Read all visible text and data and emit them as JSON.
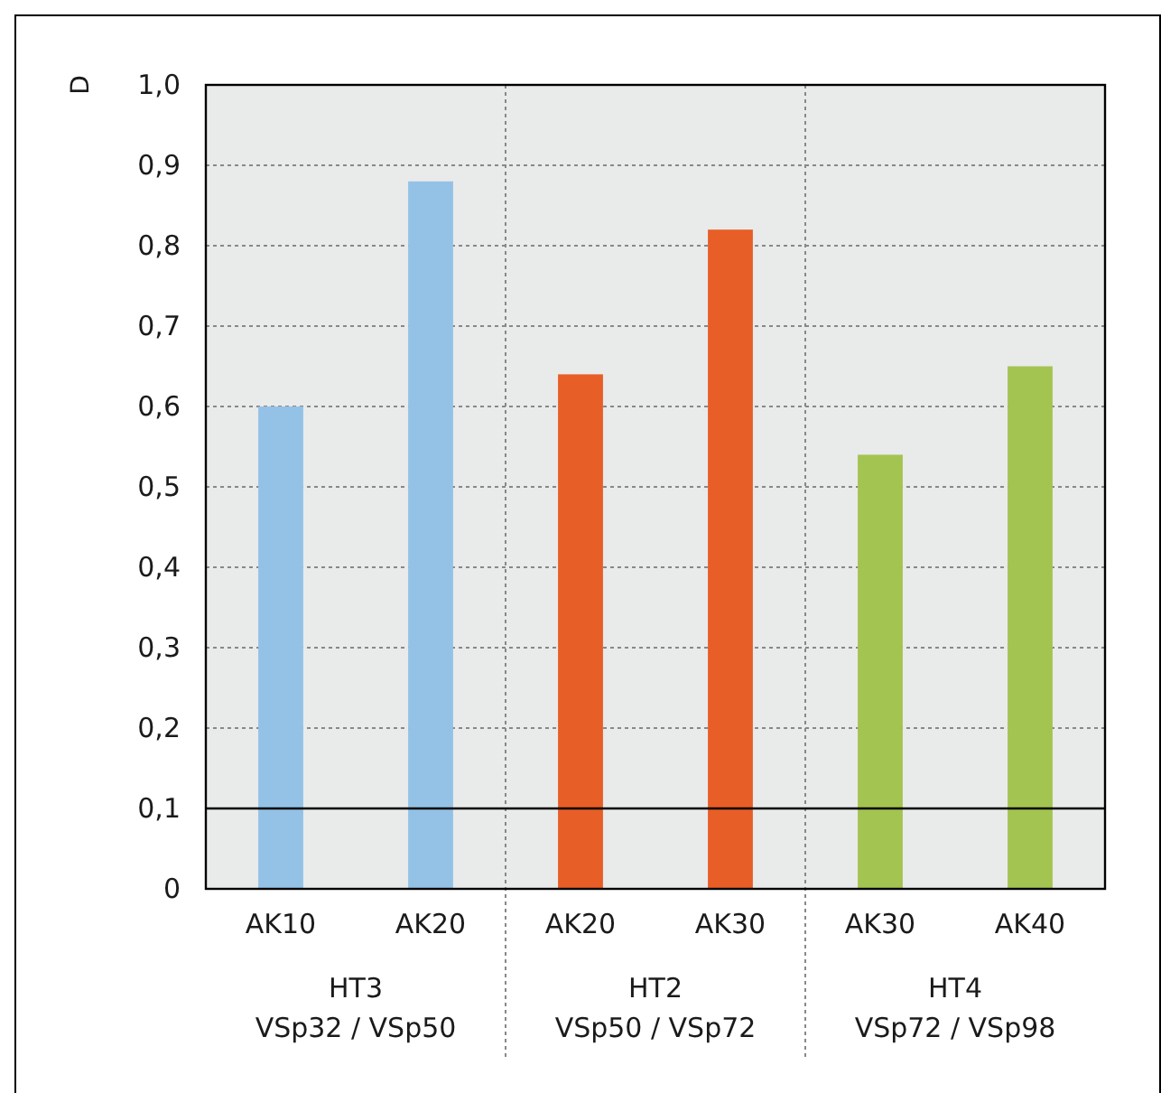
{
  "chart_data": {
    "type": "bar",
    "ylabel": "D",
    "categories": [
      "AK10",
      "AK20",
      "AK20",
      "AK30",
      "AK30",
      "AK40"
    ],
    "values": [
      0.6,
      0.88,
      0.64,
      0.82,
      0.54,
      0.65
    ],
    "colors": [
      "#93c2e6",
      "#93c2e6",
      "#e85e27",
      "#e85e27",
      "#a3c451",
      "#a3c451"
    ],
    "ylim": [
      0,
      1
    ],
    "yticks": [
      0,
      {
        "value": 0.1,
        "label": "0,1"
      },
      {
        "value": 0.2,
        "label": "0,2"
      },
      {
        "value": 0.3,
        "label": "0,3"
      },
      {
        "value": 0.4,
        "label": "0,4"
      },
      {
        "value": 0.5,
        "label": "0,5"
      },
      {
        "value": 0.6,
        "label": "0,6"
      },
      {
        "value": 0.7,
        "label": "0,7"
      },
      {
        "value": 0.8,
        "label": "0,8"
      },
      {
        "value": 0.9,
        "label": "0,9"
      },
      {
        "value": 1,
        "label": "1,0"
      }
    ],
    "grid": "y",
    "ref_lines": [
      {
        "axis": "y",
        "value": 0.1,
        "color": "#000000",
        "line_style": "solid"
      }
    ],
    "annotations": [
      "HT3\nVSp32 / VSp50",
      "HT2\nVSp50 / VSp72",
      "HT4\nVSp72 / VSp98"
    ]
  }
}
